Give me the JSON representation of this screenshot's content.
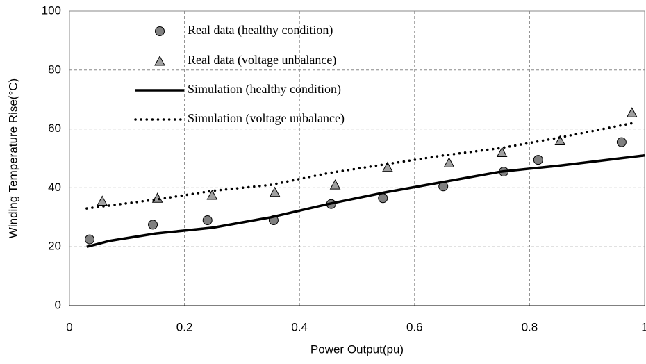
{
  "chart_data": {
    "type": "line",
    "xlabel": "Power Output(pu)",
    "ylabel": "Winding Temperature Rise(°C)",
    "xlim": [
      0,
      1
    ],
    "xticks": [
      0,
      0.2,
      0.4,
      0.6,
      0.8,
      1
    ],
    "ylim": [
      0,
      100
    ],
    "yticks": [
      0,
      20,
      40,
      60,
      80,
      100
    ],
    "grid": true,
    "legend": "upper left",
    "series": [
      {
        "name": "Real data  (healthy condition)",
        "type": "scatter",
        "marker": "circle",
        "color": "#808080",
        "x": [
          0.035,
          0.145,
          0.24,
          0.355,
          0.455,
          0.545,
          0.65,
          0.755,
          0.815,
          0.96
        ],
        "values": [
          22.5,
          27.5,
          29,
          29,
          34.5,
          36.5,
          40.5,
          45.5,
          49.5,
          55.5
        ]
      },
      {
        "name": "Real data  (voltage unbalance)",
        "type": "scatter",
        "marker": "triangle",
        "color": "#a0a0a0",
        "x": [
          0.057,
          0.153,
          0.248,
          0.357,
          0.462,
          0.553,
          0.66,
          0.752,
          0.853,
          0.978
        ],
        "values": [
          35.5,
          36.5,
          37.5,
          38.5,
          41,
          47,
          48.5,
          52,
          56,
          65.5
        ]
      },
      {
        "name": "Simulation  (healthy condition)",
        "type": "line",
        "dash": "solid",
        "color": "#000000",
        "x": [
          0.03,
          0.07,
          0.15,
          0.25,
          0.35,
          0.45,
          0.55,
          0.65,
          0.75,
          0.85,
          1.0
        ],
        "values": [
          20,
          22,
          24.5,
          26.5,
          30,
          34.5,
          38.5,
          42,
          45.5,
          47.5,
          51
        ]
      },
      {
        "name": "Simulation  (voltage unbalance)",
        "type": "line",
        "dash": "dotted",
        "color": "#000000",
        "x": [
          0.03,
          0.15,
          0.25,
          0.35,
          0.45,
          0.55,
          0.65,
          0.75,
          0.85,
          0.98
        ],
        "values": [
          33,
          36,
          39,
          41,
          45,
          48,
          51,
          53.5,
          57,
          62
        ]
      }
    ]
  }
}
